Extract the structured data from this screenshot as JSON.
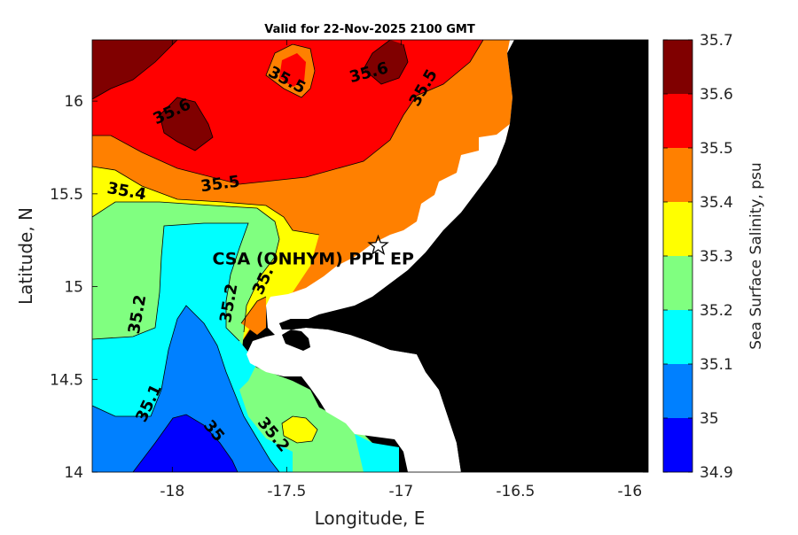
{
  "chart_data": {
    "type": "contour-map",
    "title": "Valid for 22-Nov-2025 2100 GMT",
    "xlabel": "Longitude, E",
    "ylabel": "Latitude, N",
    "xlim": [
      -18.35,
      -15.92
    ],
    "ylim": [
      14.0,
      16.33
    ],
    "xticks": [
      -18,
      -17.5,
      -17,
      -16.5,
      -16
    ],
    "xtick_labels": [
      "-18",
      "-17.5",
      "-17",
      "-16.5",
      "-16"
    ],
    "yticks": [
      14,
      14.5,
      15,
      15.5,
      16
    ],
    "ytick_labels": [
      "14",
      "14.5",
      "15",
      "15.5",
      "16"
    ],
    "colorbar": {
      "label": "Sea Surface Salinity, psu",
      "levels": [
        34.9,
        35.0,
        35.1,
        35.2,
        35.3,
        35.4,
        35.5,
        35.6,
        35.7
      ],
      "level_labels": [
        "34.9",
        "35",
        "35.1",
        "35.2",
        "35.3",
        "35.4",
        "35.5",
        "35.6",
        "35.7"
      ],
      "colors": [
        "#0000ff",
        "#0080ff",
        "#00ffff",
        "#80ff80",
        "#ffff00",
        "#ff8000",
        "#ff0000",
        "#800000"
      ]
    },
    "contour_labels": [
      {
        "text": "35.6",
        "lon": -18.0,
        "lat": 15.94,
        "angle": -25
      },
      {
        "text": "35.5",
        "lon": -17.5,
        "lat": 16.11,
        "angle": 28
      },
      {
        "text": "35.6",
        "lon": -17.14,
        "lat": 16.15,
        "angle": -15
      },
      {
        "text": "35.5",
        "lon": -16.9,
        "lat": 16.07,
        "angle": -60
      },
      {
        "text": "35.4",
        "lon": -18.2,
        "lat": 15.51,
        "angle": 10
      },
      {
        "text": "35.5",
        "lon": -17.79,
        "lat": 15.55,
        "angle": -8
      },
      {
        "text": "35.2",
        "lon": -18.15,
        "lat": 14.85,
        "angle": -80
      },
      {
        "text": "35.2",
        "lon": -17.75,
        "lat": 14.91,
        "angle": -80
      },
      {
        "text": "35.",
        "lon": -17.6,
        "lat": 15.03,
        "angle": -65
      },
      {
        "text": "35.1",
        "lon": -18.1,
        "lat": 14.37,
        "angle": -65
      },
      {
        "text": "35",
        "lon": -17.82,
        "lat": 14.22,
        "angle": 50
      },
      {
        "text": "35.2",
        "lon": -17.56,
        "lat": 14.2,
        "angle": 50
      }
    ],
    "station": {
      "name": "CSA (ONHYM) PPL EP",
      "lon": -17.1,
      "lat": 15.22,
      "marker": "star"
    }
  }
}
